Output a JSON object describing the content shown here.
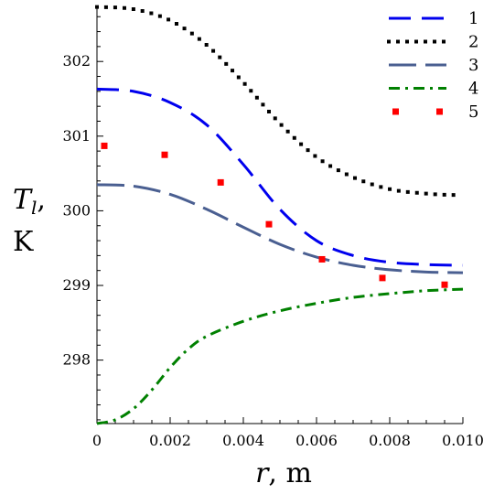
{
  "chart_data": {
    "type": "line",
    "title": "",
    "xlabel_var": "r",
    "xlabel_unit": ", m",
    "ylabel_var": "T",
    "ylabel_sub": "l",
    "ylabel_comma": ",",
    "ylabel_unit": "K",
    "xlim": [
      0,
      0.01
    ],
    "ylim": [
      297.15,
      302.75
    ],
    "x_ticks": [
      0,
      0.002,
      0.004,
      0.006,
      0.008,
      0.01
    ],
    "x_tick_labels": [
      "0",
      "0.002",
      "0.004",
      "0.006",
      "0.008",
      "0.010"
    ],
    "y_ticks": [
      298,
      299,
      300,
      301,
      302
    ],
    "y_tick_labels": [
      "298",
      "299",
      "300",
      "301",
      "302"
    ],
    "legend_position": "top-right",
    "series": [
      {
        "name": "1",
        "style": "dashed",
        "color": "#0000ee",
        "marker": false,
        "x": [
          0,
          0.001,
          0.002,
          0.003,
          0.004,
          0.005,
          0.006,
          0.007,
          0.008,
          0.009,
          0.01
        ],
        "y": [
          301.63,
          301.6,
          301.45,
          301.15,
          300.62,
          300.02,
          299.6,
          299.4,
          299.31,
          299.28,
          299.27
        ]
      },
      {
        "name": "2",
        "style": "dotted",
        "color": "#000000",
        "marker": false,
        "x": [
          0,
          0.001,
          0.002,
          0.003,
          0.004,
          0.005,
          0.006,
          0.007,
          0.008,
          0.009,
          0.0098
        ],
        "y": [
          302.73,
          302.7,
          302.55,
          302.22,
          301.72,
          301.17,
          300.72,
          300.45,
          300.29,
          300.23,
          300.21
        ]
      },
      {
        "name": "3",
        "style": "longdash",
        "color": "#4a5f91",
        "marker": false,
        "x": [
          0,
          0.001,
          0.002,
          0.003,
          0.004,
          0.005,
          0.006,
          0.007,
          0.008,
          0.009,
          0.01
        ],
        "y": [
          300.35,
          300.33,
          300.22,
          300.02,
          299.78,
          299.55,
          299.38,
          299.27,
          299.21,
          299.18,
          299.17
        ]
      },
      {
        "name": "4",
        "style": "dashdot",
        "color": "#008000",
        "marker": false,
        "x": [
          0,
          0.0005,
          0.001,
          0.0015,
          0.002,
          0.0025,
          0.003,
          0.004,
          0.005,
          0.006,
          0.007,
          0.008,
          0.009,
          0.01
        ],
        "y": [
          297.15,
          297.2,
          297.35,
          297.6,
          297.9,
          298.15,
          298.32,
          298.52,
          298.66,
          298.76,
          298.84,
          298.89,
          298.93,
          298.95
        ]
      },
      {
        "name": "5",
        "style": "points",
        "color": "#ff0000",
        "marker": true,
        "x": [
          0.0002,
          0.00185,
          0.00338,
          0.0047,
          0.00615,
          0.0078,
          0.0095
        ],
        "y": [
          300.87,
          300.75,
          300.38,
          299.82,
          299.35,
          299.1,
          299.01
        ]
      }
    ]
  }
}
